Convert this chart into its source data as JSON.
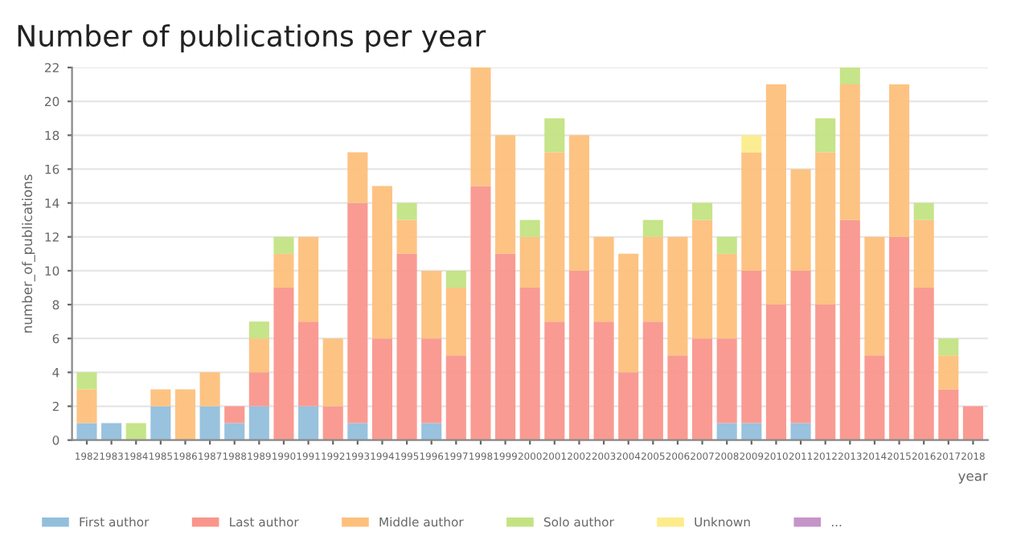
{
  "chart_data": {
    "type": "bar",
    "stacked": true,
    "title": "Number of publications per year",
    "xlabel": "year",
    "ylabel": "number_of_publications",
    "categories": [
      "1982",
      "1983",
      "1984",
      "1985",
      "1986",
      "1987",
      "1988",
      "1989",
      "1990",
      "1991",
      "1992",
      "1993",
      "1994",
      "1995",
      "1996",
      "1997",
      "1998",
      "1999",
      "2000",
      "2001",
      "2002",
      "2003",
      "2004",
      "2005",
      "2006",
      "2007",
      "2008",
      "2009",
      "2010",
      "2011",
      "2012",
      "2013",
      "2014",
      "2015",
      "2016",
      "2017",
      "2018"
    ],
    "series": [
      {
        "name": "First author",
        "color": "#93bfdc",
        "values": [
          1,
          1,
          0,
          2,
          0,
          2,
          1,
          2,
          0,
          2,
          0,
          1,
          0,
          0,
          1,
          0,
          0,
          0,
          0,
          0,
          0,
          0,
          0,
          0,
          0,
          0,
          1,
          1,
          0,
          1,
          0,
          0,
          0,
          0,
          0,
          0,
          0
        ]
      },
      {
        "name": "Last author",
        "color": "#f9968c",
        "values": [
          0,
          0,
          0,
          0,
          0,
          0,
          1,
          2,
          9,
          5,
          2,
          13,
          6,
          11,
          5,
          5,
          15,
          11,
          9,
          7,
          10,
          7,
          4,
          7,
          5,
          6,
          5,
          9,
          8,
          9,
          8,
          13,
          5,
          12,
          9,
          3,
          2
        ]
      },
      {
        "name": "Middle author",
        "color": "#fdc07c",
        "values": [
          2,
          0,
          0,
          1,
          3,
          2,
          0,
          2,
          2,
          5,
          4,
          3,
          9,
          2,
          4,
          4,
          7,
          7,
          3,
          10,
          8,
          5,
          7,
          5,
          7,
          7,
          5,
          7,
          13,
          6,
          9,
          8,
          7,
          9,
          4,
          2,
          0
        ]
      },
      {
        "name": "Solo author",
        "color": "#c3e383",
        "values": [
          1,
          0,
          1,
          0,
          0,
          0,
          0,
          1,
          1,
          0,
          0,
          0,
          0,
          1,
          0,
          1,
          0,
          0,
          1,
          2,
          0,
          0,
          0,
          1,
          0,
          1,
          1,
          0,
          0,
          0,
          2,
          1,
          0,
          0,
          1,
          1,
          0
        ]
      },
      {
        "name": "Unknown",
        "color": "#fcec8c",
        "values": [
          0,
          0,
          0,
          0,
          0,
          0,
          0,
          0,
          0,
          0,
          0,
          0,
          0,
          0,
          0,
          0,
          0,
          0,
          0,
          0,
          0,
          0,
          0,
          0,
          0,
          0,
          0,
          1,
          0,
          0,
          0,
          0,
          0,
          0,
          0,
          0,
          0
        ]
      },
      {
        "name": "...",
        "color": "#c594c9",
        "values": [
          null,
          null,
          null,
          null,
          null,
          null,
          null,
          null,
          null,
          null,
          null,
          null,
          null,
          null,
          null,
          null,
          null,
          null,
          null,
          null,
          null,
          null,
          null,
          null,
          null,
          null,
          null,
          null,
          null,
          null,
          null,
          null,
          null,
          null,
          null,
          null,
          null
        ]
      }
    ],
    "ylim": [
      0,
      22
    ],
    "yticks": [
      0,
      2,
      4,
      6,
      8,
      10,
      12,
      14,
      16,
      18,
      20,
      22
    ],
    "grid": "y",
    "legend": "bottom"
  }
}
